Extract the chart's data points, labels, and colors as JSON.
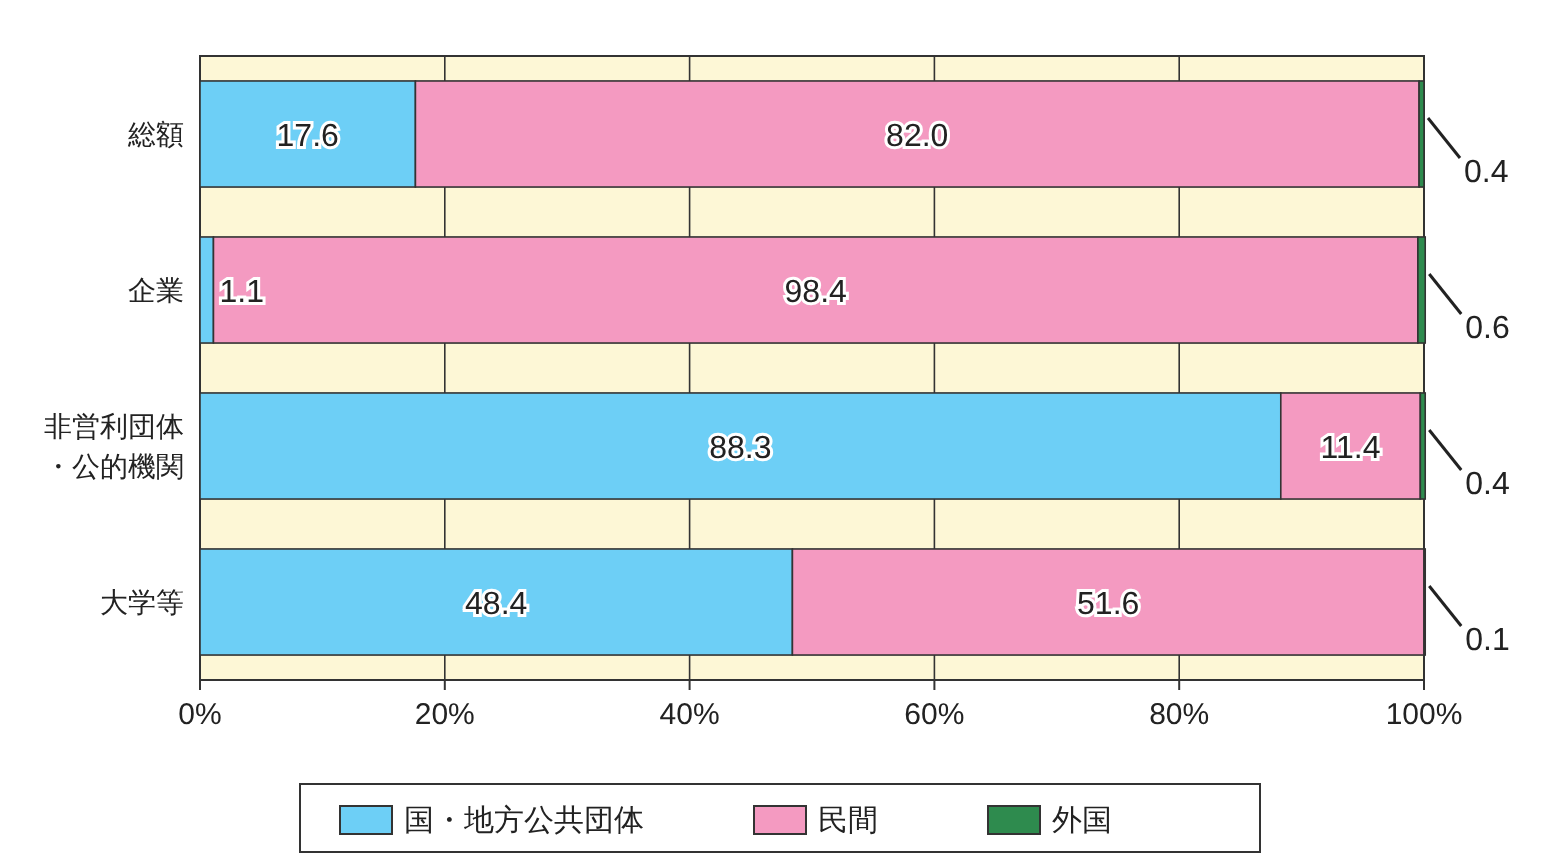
{
  "chart_data": {
    "type": "bar",
    "orientation": "horizontal",
    "stacked": true,
    "grid": "x",
    "legend": "bottom",
    "categories": [
      "総額",
      "企業",
      "非営利団体・公的機関",
      "大学等"
    ],
    "series": [
      {
        "name": "国・地方公共団体",
        "color": "#6dcff6",
        "values": [
          17.6,
          1.1,
          88.3,
          48.4
        ],
        "value_labels": [
          "17.6",
          "1.1",
          "88.3",
          "48.4"
        ]
      },
      {
        "name": "民間",
        "color": "#f49ac1",
        "values": [
          82.0,
          98.4,
          11.4,
          51.6
        ],
        "value_labels": [
          "82.0",
          "98.4",
          "11.4",
          "51.6"
        ]
      },
      {
        "name": "外国",
        "color": "#2e8b4e",
        "values": [
          0.4,
          0.6,
          0.4,
          0.1
        ],
        "value_labels": [
          "0.4",
          "0.6",
          "0.4",
          "0.1"
        ]
      }
    ],
    "xlim": [
      0,
      100
    ],
    "xticks": [
      {
        "value": 0,
        "label": "0%"
      },
      {
        "value": 20,
        "label": "20%"
      },
      {
        "value": 40,
        "label": "40%"
      },
      {
        "value": 60,
        "label": "60%"
      },
      {
        "value": 80,
        "label": "80%"
      },
      {
        "value": 100,
        "label": "100%"
      }
    ]
  }
}
